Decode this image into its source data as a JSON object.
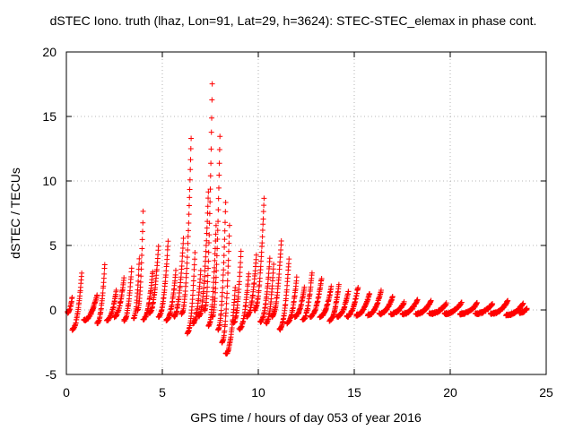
{
  "chart_data": {
    "type": "scatter",
    "title": "dSTEC Iono. truth (lhaz, Lon=91, Lat=29, h=3624): STEC-STEC_elemax in phase cont.",
    "xlabel": "GPS time / hours of day 053 of year 2016",
    "ylabel": "dSTEC  / TECUs",
    "xlim": [
      0,
      25
    ],
    "ylim": [
      -5,
      20
    ],
    "xticks": [
      0,
      5,
      10,
      15,
      20,
      25
    ],
    "yticks": [
      -5,
      0,
      5,
      10,
      15,
      20
    ],
    "grid": true,
    "marker": "+",
    "color": "#ff0000",
    "series": [
      {
        "arcs": [
          [
            0.05,
            0.3,
            -0.2,
            1.0
          ],
          [
            0.3,
            0.8,
            -1.5,
            2.8
          ],
          [
            0.9,
            1.6,
            -0.8,
            1.2
          ],
          [
            1.6,
            2.0,
            -1.0,
            3.5
          ],
          [
            2.1,
            2.6,
            -0.8,
            1.5
          ],
          [
            2.5,
            3.0,
            -0.5,
            2.5
          ],
          [
            3.0,
            3.4,
            -0.8,
            3.2
          ],
          [
            3.5,
            3.8,
            -0.6,
            4.0
          ],
          [
            3.7,
            4.0,
            0.0,
            7.6
          ],
          [
            4.0,
            4.5,
            -0.7,
            3.0
          ],
          [
            4.3,
            4.8,
            -0.3,
            5.0
          ],
          [
            4.8,
            5.3,
            -0.5,
            5.3
          ],
          [
            5.2,
            5.7,
            -0.8,
            3.0
          ],
          [
            5.6,
            6.1,
            -0.5,
            5.5
          ],
          [
            6.0,
            6.5,
            -0.3,
            13.3
          ],
          [
            6.3,
            6.7,
            -1.8,
            4.5
          ],
          [
            6.6,
            7.0,
            -1.0,
            3.0
          ],
          [
            6.9,
            7.4,
            -0.5,
            9.2
          ],
          [
            7.2,
            7.6,
            0.0,
            17.6
          ],
          [
            7.4,
            7.8,
            -1.2,
            6.5
          ],
          [
            7.6,
            8.0,
            -0.5,
            13.5
          ],
          [
            7.9,
            8.3,
            -1.5,
            8.3
          ],
          [
            8.1,
            8.5,
            -2.5,
            6.5
          ],
          [
            8.3,
            8.8,
            -3.4,
            1.8
          ],
          [
            8.7,
            9.1,
            -1.0,
            4.5
          ],
          [
            9.0,
            9.5,
            -1.5,
            2.8
          ],
          [
            9.4,
            9.9,
            -0.5,
            4.2
          ],
          [
            9.8,
            10.3,
            0.0,
            8.6
          ],
          [
            10.1,
            10.6,
            -0.9,
            4.0
          ],
          [
            10.4,
            10.8,
            -1.0,
            3.5
          ],
          [
            10.7,
            11.2,
            -0.5,
            5.4
          ],
          [
            11.1,
            11.6,
            -1.5,
            4.0
          ],
          [
            11.5,
            12.0,
            -1.0,
            2.5
          ],
          [
            11.9,
            12.4,
            -0.5,
            1.8
          ],
          [
            12.3,
            12.8,
            -0.8,
            2.9
          ],
          [
            12.7,
            13.3,
            -0.5,
            2.5
          ],
          [
            13.2,
            13.8,
            -0.5,
            1.8
          ],
          [
            13.7,
            14.2,
            -0.8,
            2.0
          ],
          [
            14.1,
            14.7,
            -0.5,
            1.5
          ],
          [
            14.6,
            15.2,
            -0.5,
            1.8
          ],
          [
            15.1,
            15.8,
            -0.4,
            1.3
          ],
          [
            15.7,
            16.4,
            -0.4,
            1.5
          ],
          [
            16.3,
            17.0,
            -0.3,
            1.0
          ],
          [
            16.9,
            17.6,
            -0.3,
            0.6
          ],
          [
            17.5,
            18.3,
            -0.3,
            0.8
          ],
          [
            18.2,
            19.0,
            -0.3,
            0.7
          ],
          [
            18.9,
            19.8,
            -0.3,
            0.5
          ],
          [
            19.7,
            20.6,
            -0.3,
            0.6
          ],
          [
            20.5,
            21.4,
            -0.3,
            0.5
          ],
          [
            21.3,
            22.2,
            -0.3,
            0.5
          ],
          [
            22.1,
            23.0,
            -0.3,
            0.7
          ],
          [
            22.9,
            23.8,
            -0.4,
            0.5
          ],
          [
            23.6,
            24.0,
            -0.2,
            0.1
          ]
        ]
      }
    ]
  }
}
